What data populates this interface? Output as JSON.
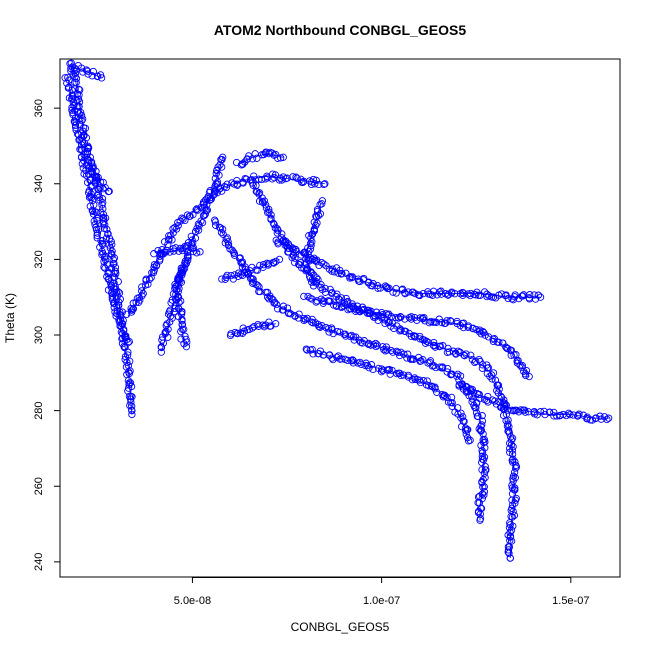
{
  "chart_data": {
    "type": "scatter",
    "title": "ATOM2 Northbound CONBGL_GEOS5",
    "xlabel": "CONBGL_GEOS5",
    "ylabel": "Theta (K)",
    "xlim": [
      1.5e-08,
      1.63e-07
    ],
    "ylim": [
      236,
      373
    ],
    "xticks": [
      5e-08,
      1e-07,
      1.5e-07
    ],
    "xtick_labels": [
      "5.0e-08",
      "1.0e-07",
      "1.5e-07"
    ],
    "yticks": [
      240,
      260,
      280,
      300,
      320,
      340,
      360
    ],
    "ytick_labels": [
      "240",
      "260",
      "280",
      "300",
      "320",
      "340",
      "360"
    ],
    "grid": false,
    "marker": "open-circle",
    "connected": true,
    "series_color": "#0000ff",
    "tracks": [
      [
        [
          1.8e-08,
          372
        ],
        [
          1.9e-08,
          368
        ],
        [
          2e-08,
          362
        ],
        [
          2.1e-08,
          355
        ],
        [
          2.2e-08,
          350
        ],
        [
          2.4e-08,
          343
        ],
        [
          2.6e-08,
          335
        ],
        [
          2.8e-08,
          325
        ],
        [
          3e-08,
          313
        ],
        [
          3.1e-08,
          305
        ],
        [
          3.2e-08,
          298
        ],
        [
          3.3e-08,
          292
        ],
        [
          3.35e-08,
          285
        ],
        [
          3.4e-08,
          279
        ]
      ],
      [
        [
          1.7e-08,
          368
        ],
        [
          1.9e-08,
          358
        ],
        [
          2.1e-08,
          348
        ],
        [
          2.3e-08,
          338
        ],
        [
          2.5e-08,
          328
        ],
        [
          2.7e-08,
          318
        ],
        [
          2.9e-08,
          310
        ],
        [
          3.1e-08,
          303
        ],
        [
          3.3e-08,
          298
        ]
      ],
      [
        [
          1.8e-08,
          371
        ],
        [
          2.1e-08,
          370
        ],
        [
          2.4e-08,
          369
        ],
        [
          2.6e-08,
          368
        ]
      ],
      [
        [
          2.3e-08,
          345
        ],
        [
          2.5e-08,
          341
        ],
        [
          2.8e-08,
          338
        ]
      ],
      [
        [
          3.3e-08,
          305
        ],
        [
          3.6e-08,
          310
        ],
        [
          3.9e-08,
          316
        ],
        [
          4.2e-08,
          322
        ],
        [
          4.6e-08,
          329
        ],
        [
          5.2e-08,
          334
        ],
        [
          5.8e-08,
          339
        ],
        [
          6.4e-08,
          341
        ],
        [
          7e-08,
          342
        ],
        [
          7.8e-08,
          341
        ],
        [
          8.5e-08,
          340
        ]
      ],
      [
        [
          4e-08,
          322
        ],
        [
          4.4e-08,
          322
        ],
        [
          4.8e-08,
          323
        ],
        [
          5.2e-08,
          322
        ]
      ],
      [
        [
          4.8e-08,
          297
        ],
        [
          4.7e-08,
          303
        ],
        [
          4.6e-08,
          312
        ],
        [
          4.9e-08,
          323
        ],
        [
          5.3e-08,
          332
        ],
        [
          5.6e-08,
          340
        ],
        [
          5.8e-08,
          347
        ]
      ],
      [
        [
          4.2e-08,
          296
        ],
        [
          4.4e-08,
          304
        ],
        [
          4.6e-08,
          313
        ],
        [
          4.8e-08,
          319
        ]
      ],
      [
        [
          6.2e-08,
          345
        ],
        [
          6.6e-08,
          347
        ],
        [
          7e-08,
          348
        ],
        [
          7.4e-08,
          347
        ]
      ],
      [
        [
          5.6e-08,
          330
        ],
        [
          6.1e-08,
          322
        ],
        [
          6.6e-08,
          314
        ],
        [
          7.2e-08,
          308
        ],
        [
          7.8e-08,
          305
        ],
        [
          8.4e-08,
          302
        ],
        [
          9e-08,
          300
        ],
        [
          9.6e-08,
          298
        ],
        [
          1.02e-07,
          296
        ],
        [
          1.08e-07,
          294
        ],
        [
          1.14e-07,
          292
        ],
        [
          1.2e-07,
          289
        ],
        [
          1.24e-07,
          284
        ],
        [
          1.26e-07,
          278
        ],
        [
          1.27e-07,
          270
        ],
        [
          1.27e-07,
          262
        ],
        [
          1.26e-07,
          255
        ],
        [
          1.26e-07,
          251
        ]
      ],
      [
        [
          6.6e-08,
          340
        ],
        [
          7e-08,
          333
        ],
        [
          7.4e-08,
          325
        ],
        [
          7.8e-08,
          319
        ],
        [
          8.3e-08,
          314
        ],
        [
          8.8e-08,
          310
        ],
        [
          9.4e-08,
          307
        ],
        [
          1e-07,
          304
        ],
        [
          1.06e-07,
          301
        ],
        [
          1.12e-07,
          298
        ],
        [
          1.18e-07,
          296
        ],
        [
          1.24e-07,
          294
        ],
        [
          1.29e-07,
          290
        ],
        [
          1.32e-07,
          283
        ],
        [
          1.34e-07,
          274
        ],
        [
          1.35e-07,
          265
        ],
        [
          1.35e-07,
          256
        ],
        [
          1.34e-07,
          248
        ],
        [
          1.34e-07,
          241
        ]
      ],
      [
        [
          7.2e-08,
          325
        ],
        [
          7.8e-08,
          322
        ],
        [
          8.4e-08,
          319
        ],
        [
          9e-08,
          316
        ],
        [
          9.6e-08,
          314
        ],
        [
          1.02e-07,
          312
        ],
        [
          1.1e-07,
          311
        ],
        [
          1.18e-07,
          311
        ],
        [
          1.26e-07,
          311
        ],
        [
          1.34e-07,
          310
        ],
        [
          1.42e-07,
          310
        ]
      ],
      [
        [
          8e-08,
          310
        ],
        [
          8.8e-08,
          308
        ],
        [
          9.6e-08,
          306
        ],
        [
          1.04e-07,
          305
        ],
        [
          1.12e-07,
          304
        ],
        [
          1.2e-07,
          303
        ],
        [
          1.28e-07,
          300
        ],
        [
          1.34e-07,
          296
        ],
        [
          1.37e-07,
          292
        ],
        [
          1.39e-07,
          289
        ]
      ],
      [
        [
          1.2e-07,
          287
        ],
        [
          1.26e-07,
          284
        ],
        [
          1.32e-07,
          281
        ],
        [
          1.38e-07,
          280
        ],
        [
          1.44e-07,
          279
        ],
        [
          1.5e-07,
          279
        ],
        [
          1.56e-07,
          278
        ],
        [
          1.6e-07,
          278
        ]
      ],
      [
        [
          8e-08,
          296
        ],
        [
          8.8e-08,
          294
        ],
        [
          9.6e-08,
          292
        ],
        [
          1.04e-07,
          290
        ],
        [
          1.12e-07,
          287
        ],
        [
          1.18e-07,
          283
        ],
        [
          1.21e-07,
          278
        ],
        [
          1.23e-07,
          272
        ]
      ],
      [
        [
          6e-08,
          300
        ],
        [
          6.6e-08,
          302
        ],
        [
          7.2e-08,
          303
        ]
      ],
      [
        [
          8.4e-08,
          335
        ],
        [
          8.2e-08,
          328
        ],
        [
          8e-08,
          321
        ],
        [
          8.2e-08,
          313
        ]
      ],
      [
        [
          5.8e-08,
          315
        ],
        [
          6.3e-08,
          316
        ],
        [
          6.8e-08,
          318
        ],
        [
          7.3e-08,
          320
        ]
      ]
    ]
  }
}
